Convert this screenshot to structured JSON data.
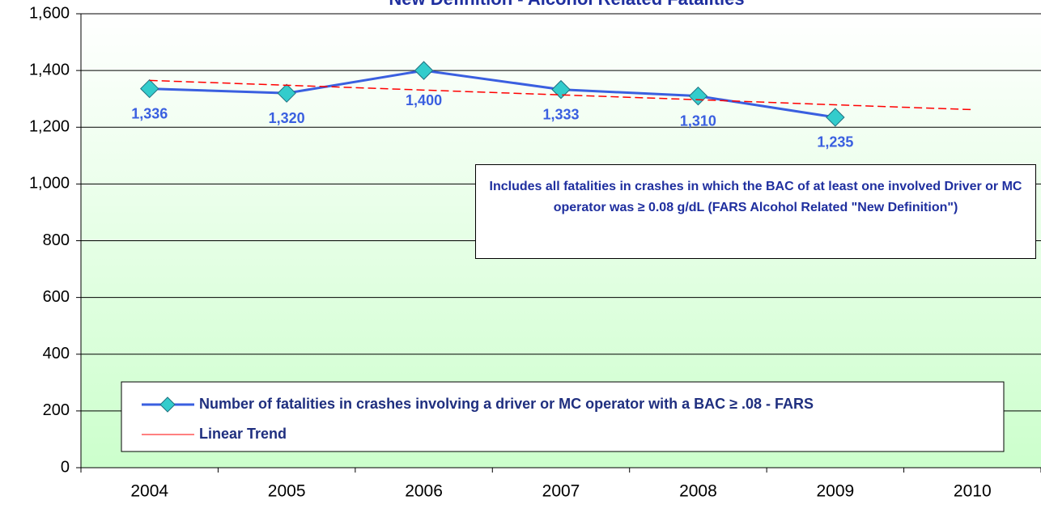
{
  "chart_data": {
    "type": "line",
    "title": "New Definition - Alcohol Related Fatalities",
    "annotation": "Includes all fatalities in crashes in which the BAC of at least  one involved Driver or MC operator was ≥ 0.08 g/dL (FARS Alcohol Related \"New Definition\")",
    "categories": [
      "2004",
      "2005",
      "2006",
      "2007",
      "2008",
      "2009",
      "2010"
    ],
    "series": [
      {
        "name": "Number of fatalities in crashes involving a driver or MC operator with a BAC ≥ .08 - FARS",
        "color": "#3a5fe0",
        "marker_color": "#33cccc",
        "values": [
          1336,
          1320,
          1400,
          1333,
          1310,
          1235,
          null
        ],
        "value_labels": [
          "1,336",
          "1,320",
          "1,400",
          "1,333",
          "1,310",
          "1,235",
          null
        ]
      },
      {
        "name": "Linear Trend",
        "color": "#ff0000",
        "dashed": true,
        "values": [
          1365,
          1348,
          1331,
          1314,
          1297,
          1279,
          1262
        ]
      }
    ],
    "ylim": [
      0,
      1600
    ],
    "yticks": [
      0,
      200,
      400,
      600,
      800,
      {
        "value": 1000,
        "label": "1,000"
      },
      {
        "value": 1200,
        "label": "1,200"
      },
      {
        "value": 1400,
        "label": "1,400"
      },
      {
        "value": 1600,
        "label": "1,600"
      }
    ],
    "grid": true,
    "legend": "bottom"
  }
}
